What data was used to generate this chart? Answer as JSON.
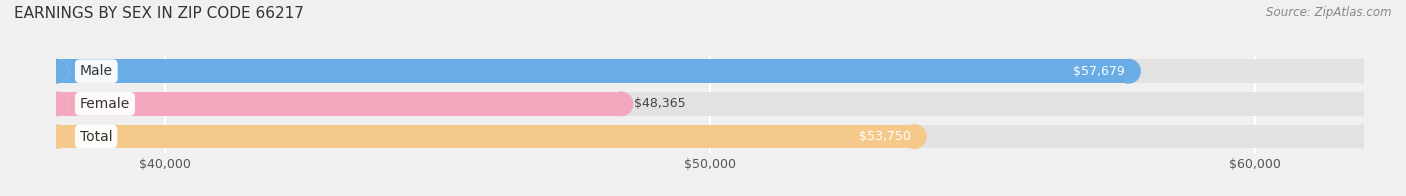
{
  "title": "EARNINGS BY SEX IN ZIP CODE 66217",
  "source": "Source: ZipAtlas.com",
  "categories": [
    "Male",
    "Female",
    "Total"
  ],
  "values": [
    57679,
    48365,
    53750
  ],
  "bar_colors": [
    "#6aace6",
    "#f4a8be",
    "#f5c98a"
  ],
  "label_inside": [
    true,
    false,
    true
  ],
  "xlim": [
    38000,
    62000
  ],
  "xticks": [
    40000,
    50000,
    60000
  ],
  "xtick_labels": [
    "$40,000",
    "$50,000",
    "$60,000"
  ],
  "value_labels": [
    "$57,679",
    "$48,365",
    "$53,750"
  ],
  "background_color": "#f0f0f0",
  "bar_bg_color": "#e2e2e2",
  "title_fontsize": 11,
  "cat_fontsize": 10,
  "val_fontsize": 9,
  "tick_fontsize": 9,
  "source_fontsize": 8.5
}
